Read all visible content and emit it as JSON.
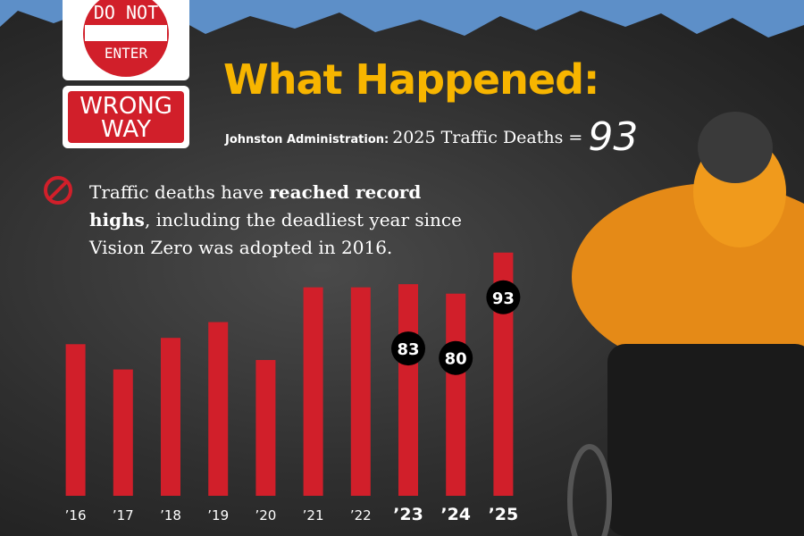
{
  "sign": {
    "top_line_1": "DO NOT",
    "top_line_2": "ENTER",
    "bottom_line_1": "WRONG",
    "bottom_line_2": "WAY"
  },
  "header": {
    "title": "What Happened:",
    "admin": "Johnston Administration:",
    "metric": "2025 Traffic Deaths =",
    "headline_value": "93"
  },
  "note": {
    "start": "Traffic deaths have ",
    "bold": "reached record highs",
    "end": ", including the deadliest year since Vision Zero was adopted in 2016."
  },
  "chart_data": {
    "type": "bar",
    "categories": [
      "’16",
      "’17",
      "’18",
      "’19",
      "’20",
      "’21",
      "’22",
      "’23",
      "’24",
      "’25"
    ],
    "values": [
      64,
      56,
      66,
      71,
      59,
      82,
      82,
      83,
      80,
      93
    ],
    "value_labels": [
      null,
      null,
      null,
      null,
      null,
      null,
      null,
      "83",
      "80",
      "93"
    ],
    "color": "#d11f2a",
    "ylim": [
      16,
      100
    ]
  }
}
